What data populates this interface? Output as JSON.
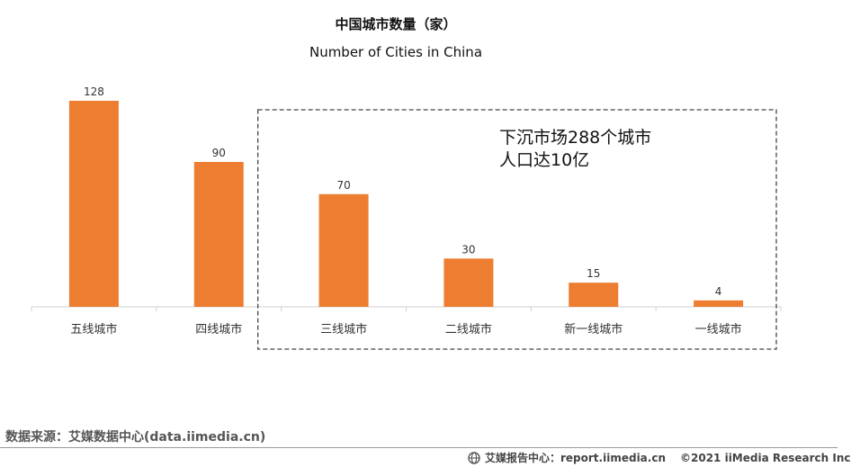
{
  "header": {
    "title_cn": "中国城市数量（家）",
    "title_en": "Number of Cities in China"
  },
  "callout": {
    "line1": "下沉市场288个城市",
    "line2": "人口达10亿"
  },
  "source": "数据来源：艾媒数据中心(data.iimedia.cn)",
  "footer": {
    "report_center": "艾媒报告中心：report.iimedia.cn",
    "copyright": "©2021  iiMedia Research  Inc"
  },
  "colors": {
    "bar": "#ED7D31",
    "axis": "#d0d0d0",
    "dashed_box": "#444444"
  },
  "icons": [
    "globe-icon"
  ],
  "chart_data": {
    "type": "bar",
    "title": "中国城市数量（家）",
    "subtitle": "Number of Cities in China",
    "categories": [
      "五线城市",
      "四线城市",
      "三线城市",
      "二线城市",
      "新一线城市",
      "一线城市"
    ],
    "values": [
      128,
      90,
      70,
      30,
      15,
      4
    ],
    "data_labels": [
      "128",
      "90",
      "70",
      "30",
      "15",
      "4"
    ],
    "ylim": [
      0,
      128
    ],
    "grid": false,
    "legend": "none",
    "highlight_group": [
      "三线城市",
      "二线城市",
      "新一线城市",
      "一线城市"
    ]
  }
}
